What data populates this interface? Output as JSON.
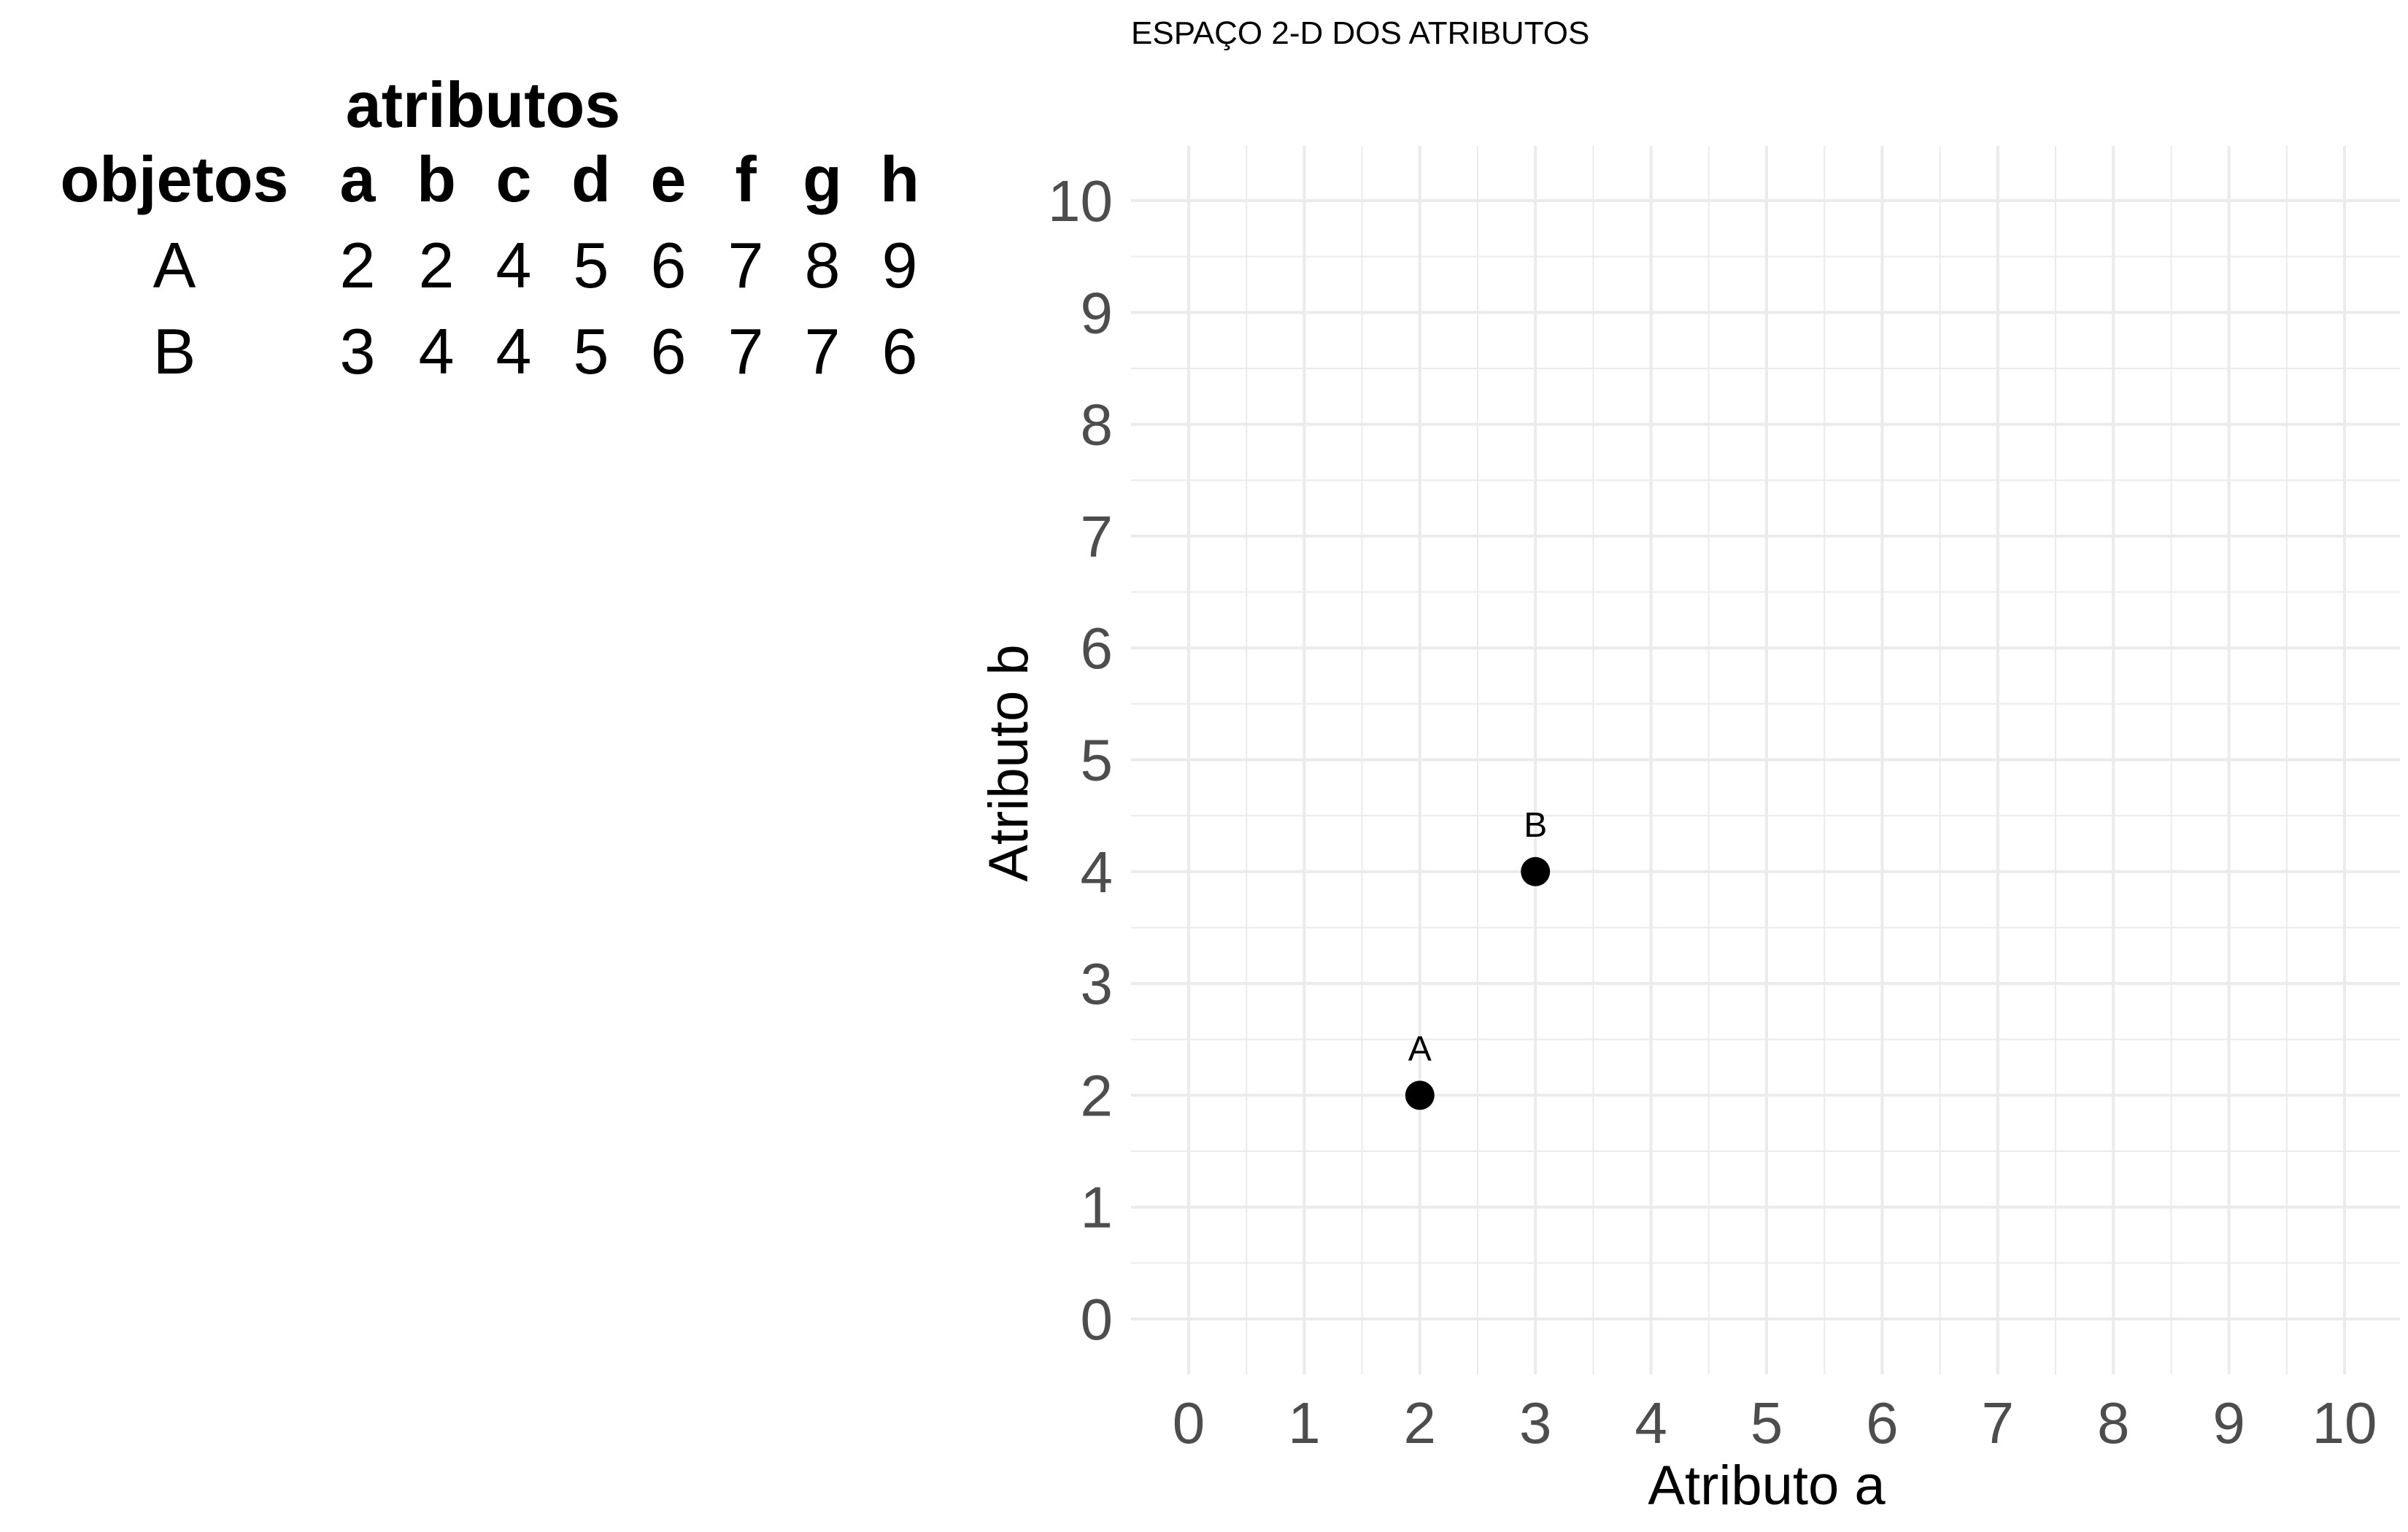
{
  "table": {
    "group_header": "atributos",
    "row_header": "objetos",
    "columns": [
      "a",
      "b",
      "c",
      "d",
      "e",
      "f",
      "g",
      "h"
    ],
    "rows": [
      {
        "label": "A",
        "values": [
          2,
          2,
          4,
          5,
          6,
          7,
          8,
          9
        ]
      },
      {
        "label": "B",
        "values": [
          3,
          4,
          4,
          5,
          6,
          7,
          7,
          6
        ]
      }
    ]
  },
  "chart_data": {
    "type": "scatter",
    "title": "ESPAÇO 2-D DOS ATRIBUTOS",
    "xlabel": "Atributo a",
    "ylabel": "Atributo b",
    "xlim": [
      0,
      10
    ],
    "ylim": [
      0,
      10
    ],
    "xticks": [
      0,
      1,
      2,
      3,
      4,
      5,
      6,
      7,
      8,
      9,
      10
    ],
    "yticks": [
      0,
      1,
      2,
      3,
      4,
      5,
      6,
      7,
      8,
      9,
      10
    ],
    "grid": true,
    "points": [
      {
        "label": "A",
        "x": 2,
        "y": 2
      },
      {
        "label": "B",
        "x": 3,
        "y": 4
      }
    ],
    "colors": {
      "point": "#000000",
      "grid": "#ebebeb",
      "tick_text": "#4d4d4d"
    }
  }
}
